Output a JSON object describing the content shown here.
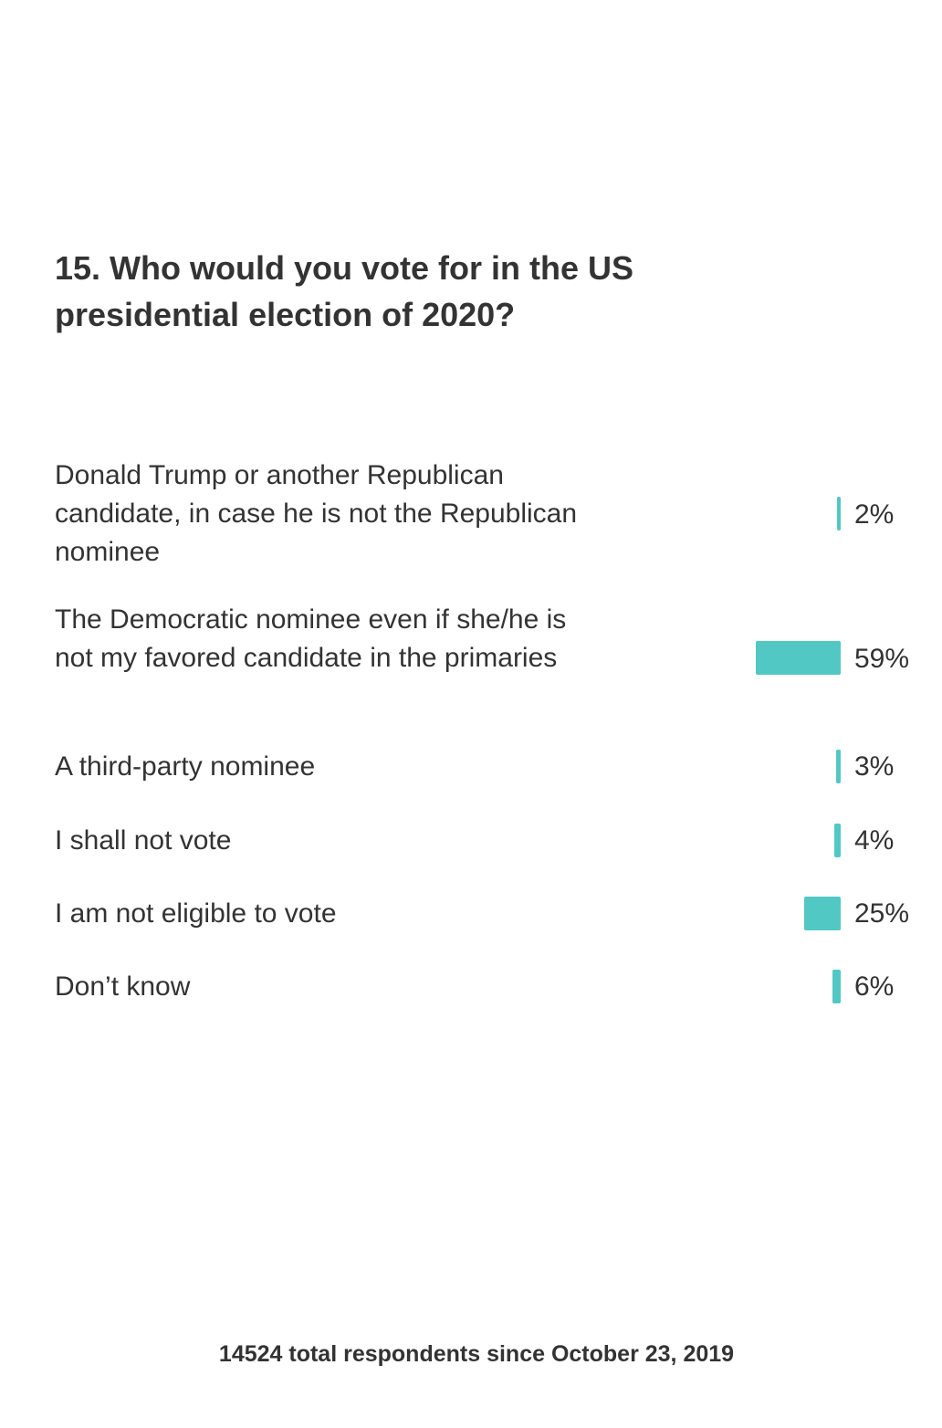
{
  "question": {
    "title": "15. Who would you vote for in the US presidential election of 2020?"
  },
  "colors": {
    "bar": "#52c8c5",
    "text": "#333333"
  },
  "chart_data": {
    "type": "bar",
    "orientation": "horizontal",
    "title": "15. Who would you vote for in the US presidential election of 2020?",
    "categories": [
      "Donald Trump or another Republican candidate, in case he is not the Republican nominee",
      "The Democratic nominee even if she/he is not my favored candidate in the primaries",
      "A third-party nominee",
      "I shall not vote",
      "I am not eligible to vote",
      "Don’t know"
    ],
    "values": [
      2,
      59,
      3,
      4,
      25,
      6
    ],
    "value_labels": [
      "2%",
      "59%",
      "3%",
      "4%",
      "25%",
      "6%"
    ],
    "unit": "%",
    "xlim": [
      0,
      100
    ],
    "grid": false,
    "legend": "none"
  },
  "footer": {
    "text": "14524 total respondents since October 23, 2019"
  }
}
